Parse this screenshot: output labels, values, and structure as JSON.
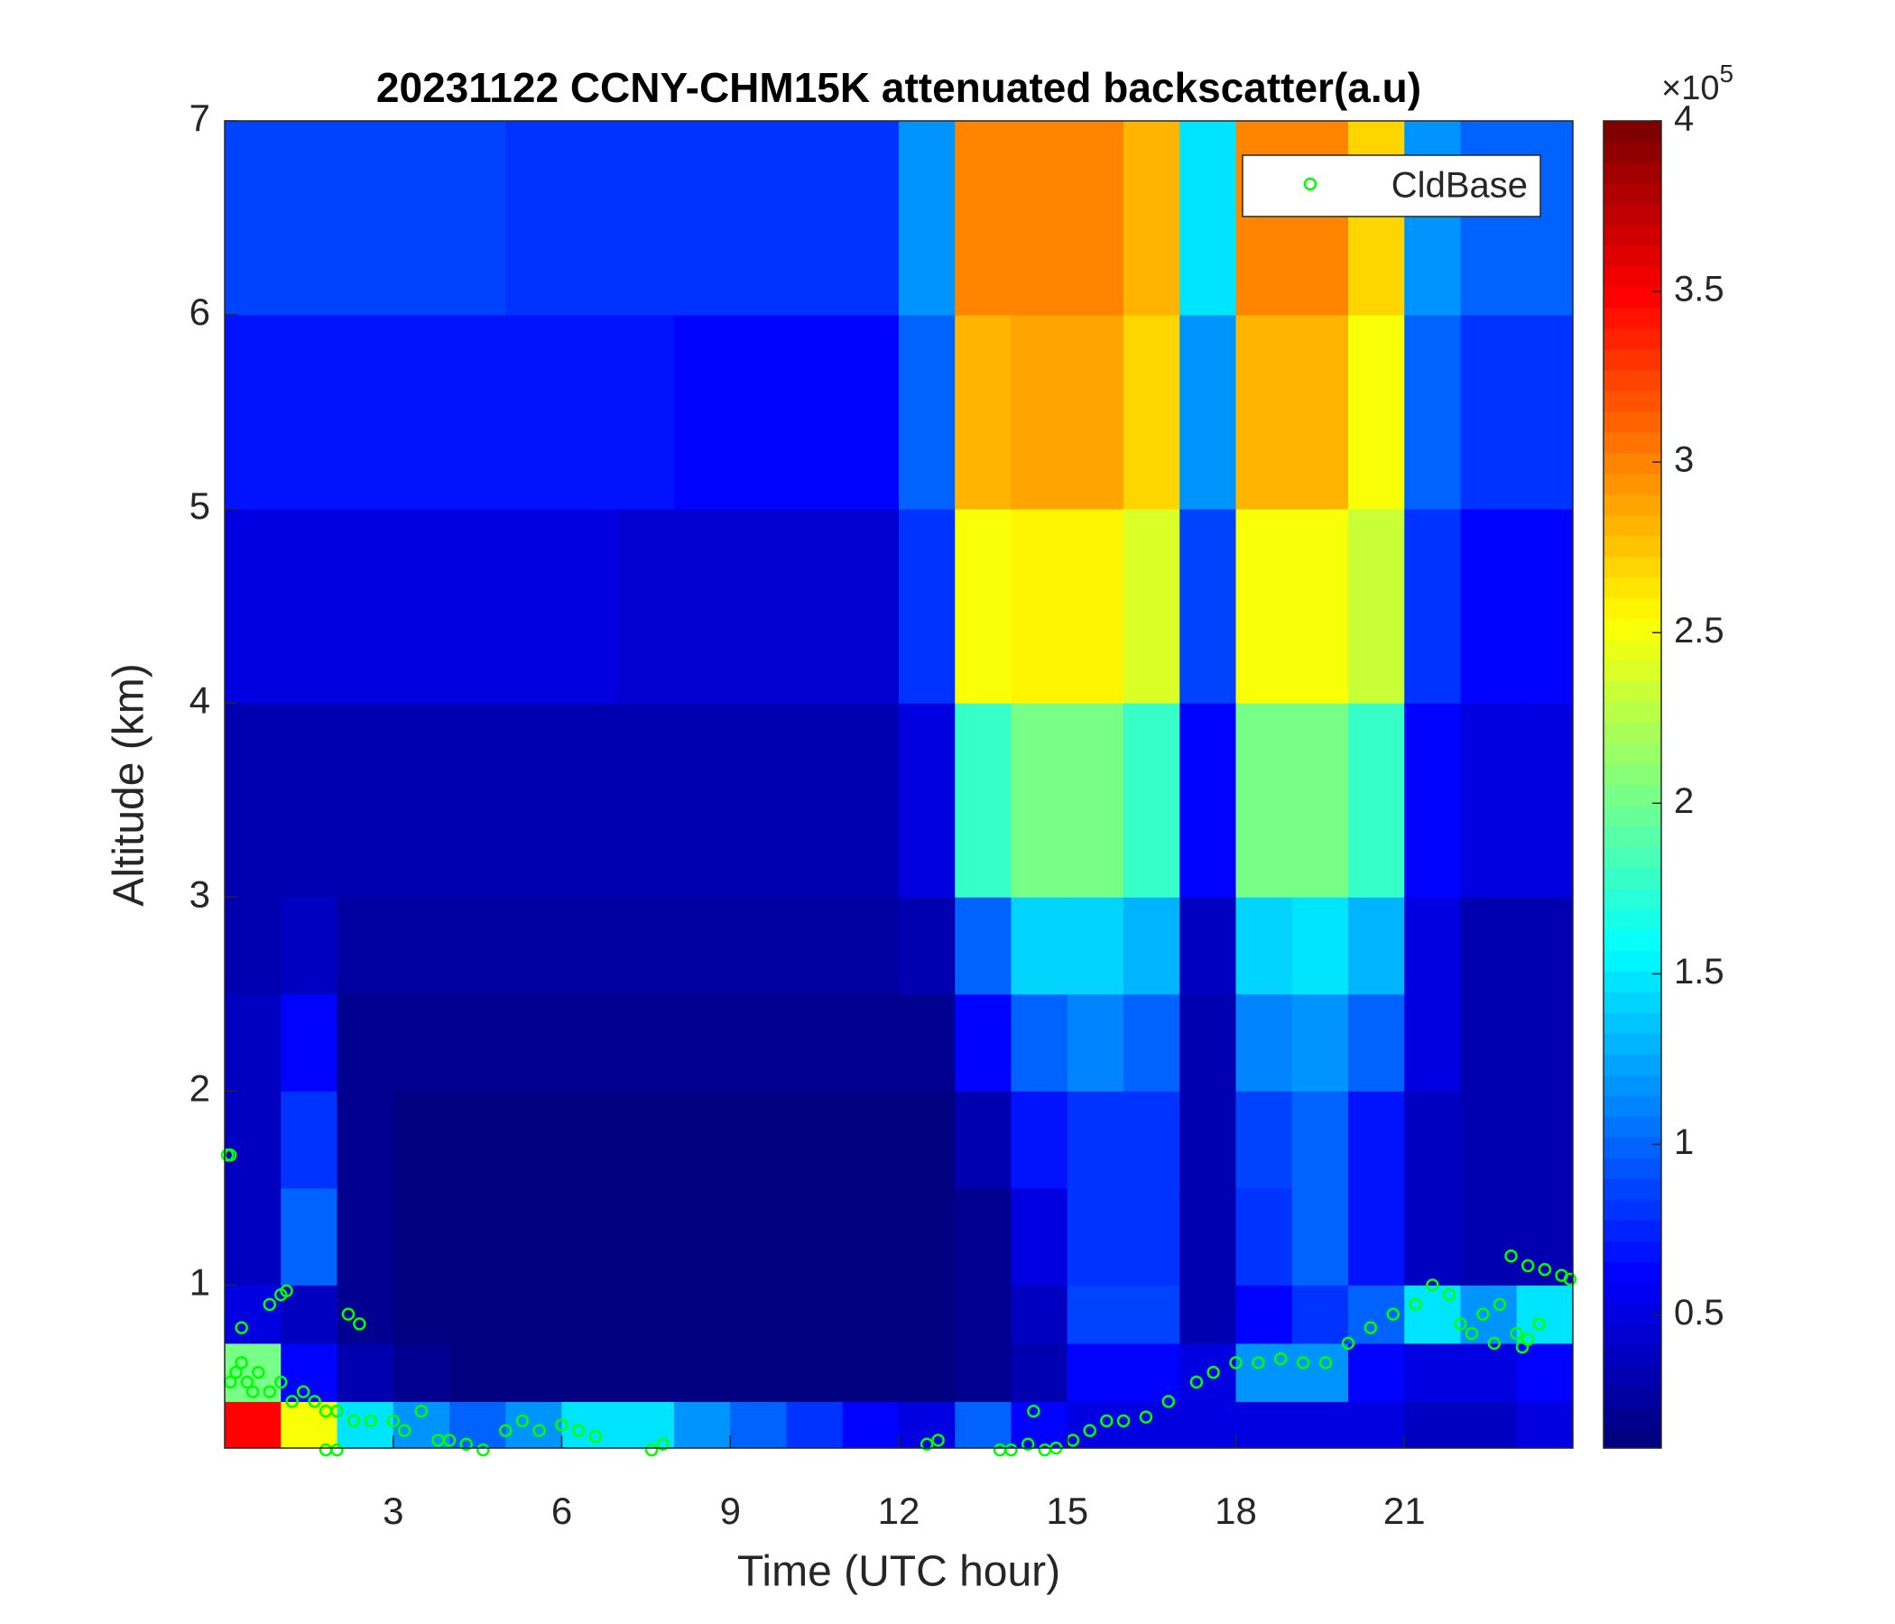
{
  "chart_data": {
    "type": "heatmap",
    "title": "20231122 CCNY-CHM15K attenuated backscatter(a.u)",
    "x_label": "Time (UTC hour)",
    "y_label": "Altitude (km)",
    "xlim": [
      0,
      24
    ],
    "xticks": [
      3,
      6,
      9,
      12,
      15,
      18,
      21
    ],
    "ylim": [
      0.16,
      7
    ],
    "yticks": [
      1,
      2,
      3,
      4,
      5,
      6,
      7
    ],
    "colormap": "jet",
    "clim": [
      0.11,
      4
    ],
    "colorbar_ticks": [
      0.5,
      1,
      1.5,
      2,
      2.5,
      3,
      3.5,
      4
    ],
    "colorbar_multiplier": {
      "base": "×10",
      "exponent": "5"
    },
    "legend_position": "upper right",
    "x_edges": [
      0,
      1,
      2,
      3,
      4,
      5,
      6,
      7,
      8,
      9,
      10,
      11,
      12,
      13,
      14,
      15,
      16,
      17,
      18,
      19,
      20,
      21,
      22,
      23,
      24
    ],
    "y_edges": [
      0.16,
      0.4,
      0.7,
      1,
      1.5,
      2,
      2.5,
      3,
      4,
      5,
      6,
      7
    ],
    "z": [
      [
        3.5,
        2.5,
        1.5,
        1.2,
        1.0,
        1.2,
        1.5,
        1.5,
        1.2,
        1.0,
        0.8,
        0.6,
        0.5,
        1.0,
        0.6,
        0.5,
        0.5,
        0.5,
        0.5,
        0.5,
        0.5,
        0.4,
        0.4,
        0.5
      ],
      [
        2.0,
        0.6,
        0.3,
        0.2,
        0.15,
        0.15,
        0.15,
        0.15,
        0.15,
        0.15,
        0.15,
        0.15,
        0.15,
        0.2,
        0.3,
        0.6,
        0.6,
        0.5,
        1.2,
        1.2,
        0.6,
        0.5,
        0.5,
        0.6
      ],
      [
        0.5,
        0.4,
        0.2,
        0.15,
        0.15,
        0.15,
        0.15,
        0.15,
        0.15,
        0.15,
        0.15,
        0.15,
        0.15,
        0.2,
        0.4,
        0.9,
        0.9,
        0.3,
        0.6,
        0.8,
        1.0,
        1.5,
        1.2,
        1.5
      ],
      [
        0.4,
        1.0,
        0.2,
        0.15,
        0.15,
        0.15,
        0.15,
        0.15,
        0.15,
        0.15,
        0.15,
        0.15,
        0.15,
        0.2,
        0.5,
        0.8,
        0.8,
        0.3,
        0.8,
        1.0,
        0.7,
        0.4,
        0.3,
        0.3
      ],
      [
        0.4,
        0.8,
        0.2,
        0.15,
        0.15,
        0.15,
        0.15,
        0.15,
        0.15,
        0.15,
        0.15,
        0.15,
        0.15,
        0.3,
        0.7,
        0.8,
        0.8,
        0.3,
        0.9,
        1.0,
        0.7,
        0.4,
        0.3,
        0.3
      ],
      [
        0.4,
        0.6,
        0.2,
        0.2,
        0.2,
        0.2,
        0.2,
        0.2,
        0.2,
        0.2,
        0.2,
        0.2,
        0.2,
        0.6,
        1.0,
        1.1,
        1.0,
        0.3,
        1.1,
        1.2,
        1.0,
        0.5,
        0.3,
        0.3
      ],
      [
        0.3,
        0.4,
        0.25,
        0.25,
        0.25,
        0.25,
        0.25,
        0.25,
        0.25,
        0.25,
        0.25,
        0.25,
        0.3,
        1.0,
        1.4,
        1.4,
        1.3,
        0.4,
        1.4,
        1.5,
        1.3,
        0.5,
        0.35,
        0.35
      ],
      [
        0.35,
        0.35,
        0.35,
        0.35,
        0.3,
        0.3,
        0.3,
        0.3,
        0.3,
        0.3,
        0.3,
        0.3,
        0.5,
        1.8,
        2.0,
        2.0,
        1.8,
        0.6,
        2.0,
        2.0,
        1.8,
        0.6,
        0.5,
        0.5
      ],
      [
        0.5,
        0.5,
        0.5,
        0.5,
        0.5,
        0.5,
        0.5,
        0.45,
        0.45,
        0.45,
        0.45,
        0.45,
        0.8,
        2.5,
        2.6,
        2.6,
        2.4,
        0.9,
        2.5,
        2.5,
        2.3,
        0.8,
        0.6,
        0.6
      ],
      [
        0.7,
        0.7,
        0.7,
        0.7,
        0.7,
        0.7,
        0.7,
        0.7,
        0.6,
        0.6,
        0.6,
        0.6,
        1.0,
        2.8,
        2.9,
        2.9,
        2.7,
        1.2,
        2.8,
        2.8,
        2.5,
        1.0,
        0.8,
        0.8
      ],
      [
        0.9,
        0.9,
        0.9,
        0.9,
        0.9,
        0.8,
        0.8,
        0.8,
        0.8,
        0.8,
        0.8,
        0.8,
        1.2,
        3.0,
        3.0,
        3.0,
        2.8,
        1.5,
        3.0,
        3.0,
        2.7,
        1.2,
        1.0,
        1.0
      ]
    ],
    "series": [
      {
        "name": "CldBase",
        "type": "scatter",
        "color": "#00ff00",
        "x": [
          0.05,
          0.1,
          0.1,
          0.2,
          0.3,
          0.4,
          0.5,
          0.6,
          0.8,
          1.0,
          1.2,
          1.4,
          1.6,
          1.8,
          0.8,
          1.0,
          1.1,
          0.3,
          2.2,
          2.4,
          1.8,
          2.0,
          2.0,
          2.3,
          2.6,
          3.0,
          3.2,
          3.5,
          3.8,
          4.0,
          4.3,
          4.6,
          5.0,
          5.3,
          5.6,
          6.0,
          6.3,
          6.6,
          7.6,
          7.8,
          12.5,
          12.7,
          13.8,
          14.0,
          14.3,
          14.4,
          14.6,
          14.8,
          15.1,
          15.4,
          15.7,
          16.0,
          16.4,
          16.8,
          17.3,
          17.6,
          18.0,
          18.4,
          18.8,
          19.2,
          19.6,
          20.0,
          20.4,
          20.8,
          21.2,
          21.5,
          21.8,
          22.0,
          22.2,
          22.4,
          22.6,
          22.7,
          22.9,
          23.2,
          23.5,
          23.8,
          23.95,
          23.0,
          23.2,
          23.4,
          23.1
        ],
        "y": [
          1.67,
          1.67,
          0.5,
          0.55,
          0.6,
          0.5,
          0.45,
          0.55,
          0.45,
          0.5,
          0.4,
          0.45,
          0.4,
          0.35,
          0.9,
          0.95,
          0.97,
          0.78,
          0.85,
          0.8,
          0.15,
          0.15,
          0.35,
          0.3,
          0.3,
          0.3,
          0.25,
          0.35,
          0.2,
          0.2,
          0.18,
          0.15,
          0.25,
          0.3,
          0.25,
          0.28,
          0.25,
          0.22,
          0.15,
          0.18,
          0.18,
          0.2,
          0.15,
          0.15,
          0.18,
          0.35,
          0.15,
          0.16,
          0.2,
          0.25,
          0.3,
          0.3,
          0.32,
          0.4,
          0.5,
          0.55,
          0.6,
          0.6,
          0.62,
          0.6,
          0.6,
          0.7,
          0.78,
          0.85,
          0.9,
          1.0,
          0.95,
          0.8,
          0.75,
          0.85,
          0.7,
          0.9,
          1.15,
          1.1,
          1.08,
          1.05,
          1.03,
          0.75,
          0.72,
          0.8,
          0.68
        ]
      }
    ]
  }
}
